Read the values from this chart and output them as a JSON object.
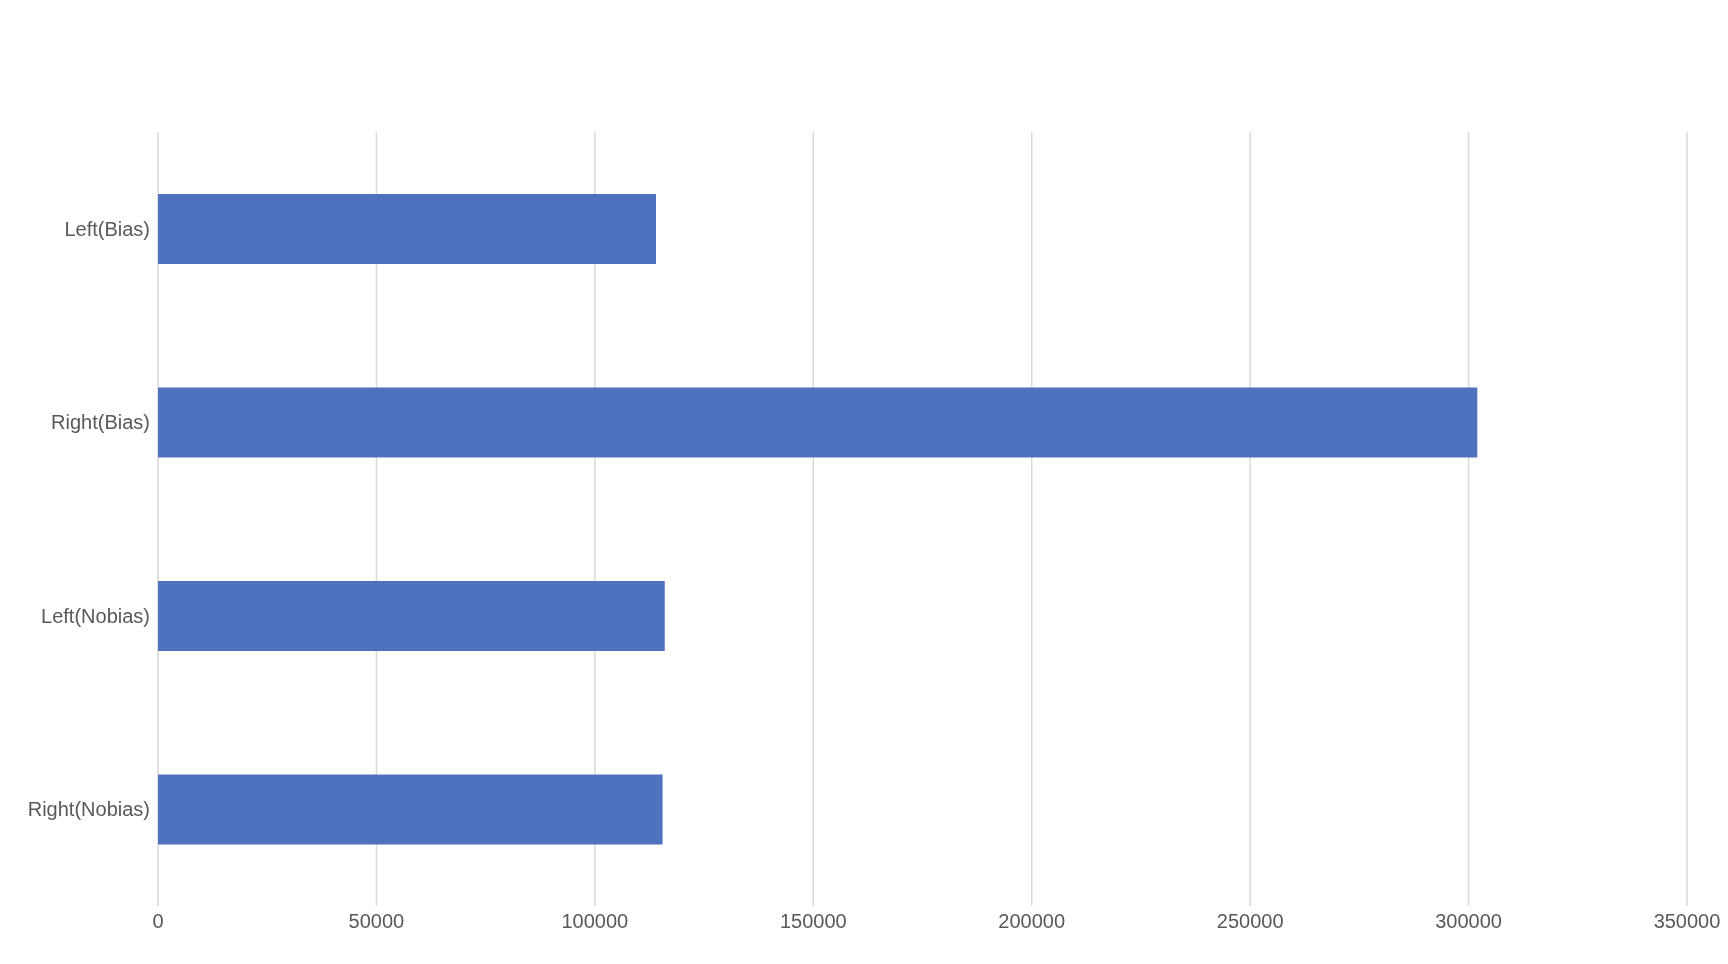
{
  "chart_data": {
    "type": "bar",
    "orientation": "horizontal",
    "categories": [
      "Left(Bias)",
      "Right(Bias)",
      "Left(Nobias)",
      "Right(Nobias)"
    ],
    "values": [
      114000,
      302000,
      116000,
      115500
    ],
    "color": "#4f72be",
    "xlim": [
      0,
      350000
    ],
    "xticks": [
      0,
      50000,
      100000,
      150000,
      200000,
      250000,
      300000,
      350000
    ],
    "grid": "x",
    "legend": false
  }
}
